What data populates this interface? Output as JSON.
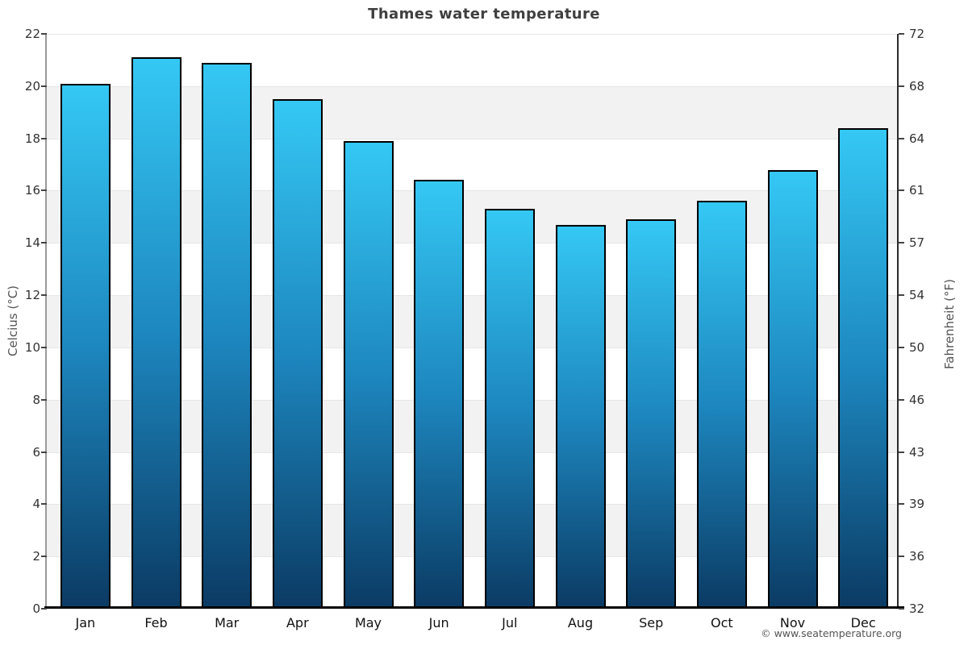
{
  "title": "Thames water temperature",
  "credits": "© www.seatemperature.org",
  "chart_data": {
    "type": "bar",
    "title": "Thames water temperature",
    "categories": [
      "Jan",
      "Feb",
      "Mar",
      "Apr",
      "May",
      "Jun",
      "Jul",
      "Aug",
      "Sep",
      "Oct",
      "Nov",
      "Dec"
    ],
    "values_celsius": [
      20.1,
      21.1,
      20.9,
      19.5,
      17.9,
      16.4,
      15.3,
      14.7,
      14.9,
      15.6,
      16.8,
      18.4
    ],
    "ylabel_left": "Celcius (°C)",
    "ylabel_right": "Fahrenheit (°F)",
    "yticks_celsius": [
      0,
      2,
      4,
      6,
      8,
      10,
      12,
      14,
      16,
      18,
      20,
      22
    ],
    "yticks_fahrenheit": [
      32,
      36,
      39,
      43,
      46,
      50,
      54,
      57,
      61,
      64,
      68,
      72
    ],
    "ylim_celsius": [
      0,
      22
    ],
    "legend": "none",
    "grid": {
      "gridline_step_celsius": 2,
      "gray_bands_celsius": [
        [
          2,
          4
        ],
        [
          6,
          8
        ],
        [
          10,
          12
        ],
        [
          14,
          16
        ],
        [
          18,
          20
        ]
      ]
    }
  },
  "colors": {
    "bar_top": "#35c8f4",
    "bar_mid": "#1d87bf",
    "bar_bottom": "#0b3b64",
    "bar_border": "#000000",
    "band": "#f2f2f2",
    "gridline": "#e6e6e6",
    "title": "#3f3f3f",
    "axis_title": "#555555",
    "tick_label": "#333333",
    "month_label": "#111111",
    "credits": "#555555",
    "axis_line_left": "#9a9a9a",
    "axis_line_right": "#2b2b2b",
    "axis_line_bottom": "#000000"
  }
}
